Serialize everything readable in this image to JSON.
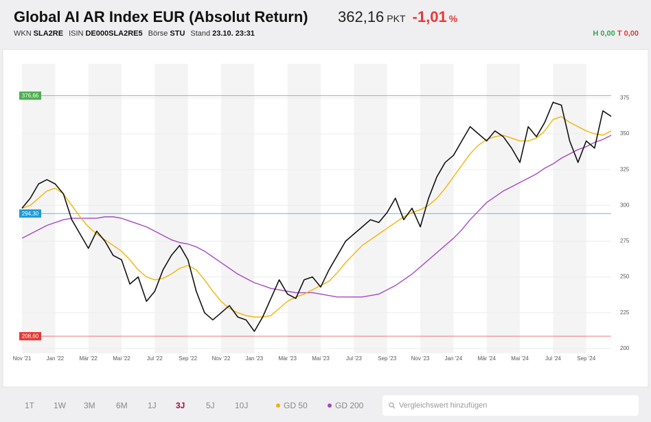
{
  "header": {
    "title": "Global AI AR Index EUR (Absolut Return)",
    "price": "362,16",
    "unit": "PKT",
    "change": "-1,01",
    "change_unit": "%",
    "meta": [
      {
        "label": "WKN",
        "value": "SLA2RE"
      },
      {
        "label": "ISIN",
        "value": "DE000SLA2RE5"
      },
      {
        "label": "Börse",
        "value": "STU"
      },
      {
        "label": "Stand",
        "value": "23.10. 23:31"
      }
    ],
    "high": "H 0,00",
    "low": "T 0,00"
  },
  "controls": {
    "periods": [
      "1T",
      "1W",
      "3M",
      "6M",
      "1J",
      "3J",
      "5J",
      "10J"
    ],
    "active_period": "3J",
    "search_placeholder": "Vergleichswert hinzufügen"
  },
  "chart_data": {
    "type": "line",
    "categories": [
      "Nov '21",
      null,
      null,
      null,
      "Jan '22",
      null,
      null,
      null,
      "Mär '22",
      null,
      null,
      null,
      "Mai '22",
      null,
      null,
      null,
      "Jul '22",
      null,
      null,
      null,
      "Sep '22",
      null,
      null,
      null,
      "Nov '22",
      null,
      null,
      null,
      "Jan '23",
      null,
      null,
      null,
      "Mär '23",
      null,
      null,
      null,
      "Mai '23",
      null,
      null,
      null,
      "Jul '23",
      null,
      null,
      null,
      "Sep '23",
      null,
      null,
      null,
      "Nov '23",
      null,
      null,
      null,
      "Jan '24",
      null,
      null,
      null,
      "Mär '24",
      null,
      null,
      null,
      "Mai '24",
      null,
      null,
      null,
      "Jul '24",
      null,
      null,
      null,
      "Sep '24",
      null,
      null,
      null
    ],
    "series": [
      {
        "color": "#111111",
        "values": [
          298,
          305,
          315,
          318,
          315,
          308,
          290,
          280,
          270,
          282,
          275,
          265,
          262,
          245,
          250,
          233,
          240,
          255,
          265,
          272,
          262,
          240,
          225,
          220,
          225,
          230,
          222,
          220,
          212,
          222,
          235,
          248,
          238,
          235,
          248,
          250,
          243,
          255,
          265,
          275,
          280,
          285,
          290,
          288,
          295,
          305,
          290,
          298,
          285,
          305,
          320,
          330,
          335,
          345,
          355,
          350,
          345,
          352,
          348,
          340,
          330,
          355,
          348,
          358,
          372,
          370,
          345,
          330,
          345,
          340,
          366,
          362.16
        ]
      },
      {
        "name": "GD 50",
        "color": "#f0b400",
        "values": [
          298,
          300,
          305,
          310,
          312,
          308,
          300,
          292,
          285,
          280,
          276,
          272,
          268,
          262,
          255,
          250,
          248,
          249,
          252,
          256,
          258,
          255,
          248,
          240,
          233,
          228,
          225,
          223,
          222,
          222,
          223,
          228,
          233,
          236,
          238,
          241,
          244,
          247,
          253,
          260,
          266,
          272,
          276,
          280,
          284,
          288,
          292,
          295,
          297,
          300,
          305,
          312,
          320,
          328,
          336,
          342,
          346,
          348,
          349,
          347,
          345,
          345,
          347,
          352,
          360,
          362,
          358,
          355,
          352,
          350,
          349,
          352
        ]
      },
      {
        "name": "GD 200",
        "color": "#a646c4",
        "values": [
          277,
          280,
          283,
          286,
          288,
          290,
          291,
          291,
          291,
          291,
          292,
          292,
          291,
          289,
          287,
          285,
          282,
          279,
          276,
          274,
          273,
          271,
          268,
          264,
          260,
          256,
          252,
          249,
          246,
          244,
          242,
          241,
          240,
          239,
          239,
          239,
          238,
          237,
          236,
          236,
          236,
          236,
          237,
          238,
          241,
          244,
          248,
          252,
          257,
          262,
          267,
          272,
          277,
          283,
          290,
          296,
          302,
          306,
          310,
          313,
          316,
          319,
          322,
          326,
          329,
          333,
          336,
          339,
          341,
          344,
          346,
          349
        ]
      }
    ],
    "reference_lines": [
      {
        "value": 376.66,
        "label": "376,66",
        "color": "#4caf50"
      },
      {
        "value": 294.3,
        "label": "294,30",
        "color": "#1e9bd7"
      },
      {
        "value": 208.6,
        "label": "208,60",
        "color": "#e53935"
      }
    ],
    "ylim": [
      196.6,
      398.9
    ],
    "yticks": [
      200,
      225,
      250,
      275,
      300,
      325,
      350,
      375
    ],
    "grid": true
  }
}
